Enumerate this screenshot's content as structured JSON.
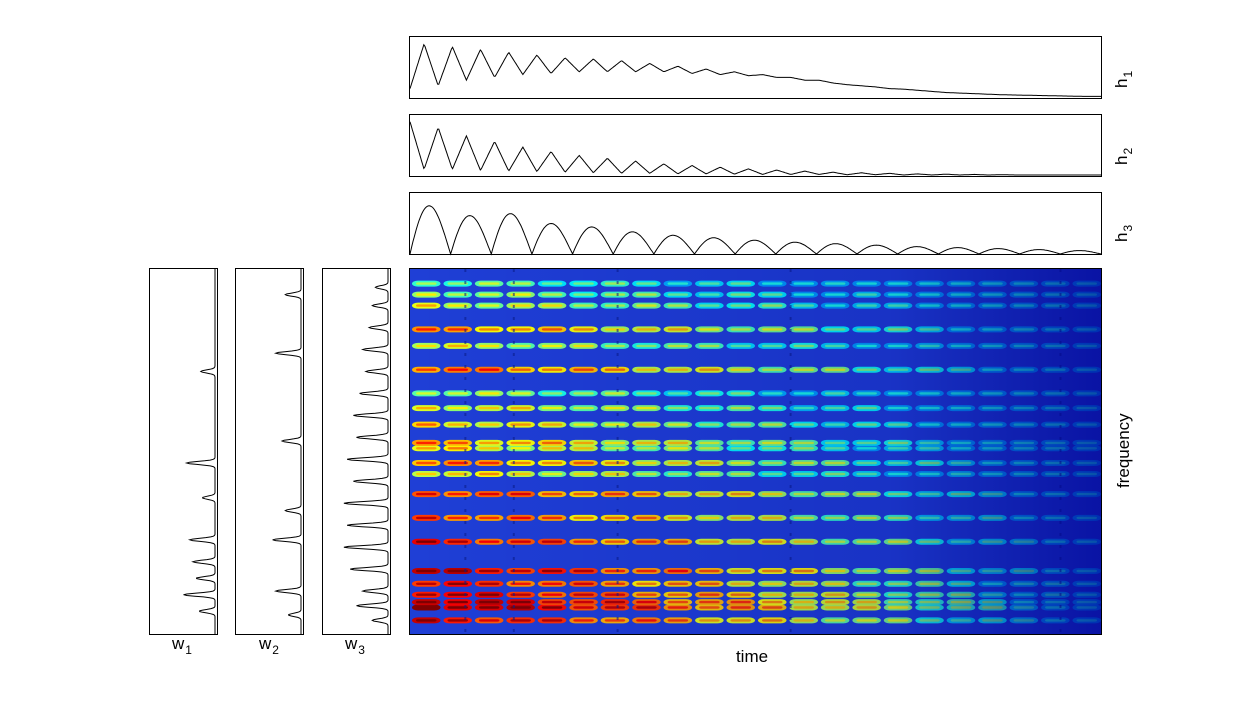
{
  "figure": {
    "colors": {
      "frame": "#000000",
      "trace": "#000000",
      "background": "#ffffff"
    },
    "xlabel": "time",
    "ylabel": "frequency"
  },
  "chart_data": [
    {
      "type": "line",
      "id": "h1",
      "label": "h",
      "subscript": "1",
      "axes_visible": false,
      "description_of_shape": "oscillating decay",
      "values": [
        0.15,
        0.95,
        0.2,
        0.9,
        0.3,
        0.85,
        0.35,
        0.8,
        0.4,
        0.75,
        0.42,
        0.7,
        0.45,
        0.68,
        0.45,
        0.65,
        0.45,
        0.6,
        0.45,
        0.55,
        0.42,
        0.5,
        0.4,
        0.45,
        0.38,
        0.4,
        0.35,
        0.35,
        0.3,
        0.3,
        0.25,
        0.22,
        0.2,
        0.18,
        0.15,
        0.14,
        0.12,
        0.1,
        0.08,
        0.07,
        0.06,
        0.05,
        0.04,
        0.035,
        0.03,
        0.025,
        0.02,
        0.015,
        0.01,
        0.01
      ]
    },
    {
      "type": "line",
      "id": "h2",
      "label": "h",
      "subscript": "2",
      "axes_visible": false,
      "values": [
        0.95,
        0.1,
        0.85,
        0.1,
        0.7,
        0.08,
        0.6,
        0.07,
        0.5,
        0.06,
        0.42,
        0.05,
        0.35,
        0.04,
        0.3,
        0.03,
        0.25,
        0.03,
        0.2,
        0.02,
        0.17,
        0.02,
        0.14,
        0.015,
        0.11,
        0.01,
        0.09,
        0.01,
        0.07,
        0.01,
        0.05,
        0.005,
        0.04,
        0.005,
        0.03,
        0.0,
        0.02,
        0.0,
        0.015,
        0.0,
        0.01,
        0.0,
        0.005,
        0.0,
        0.0,
        0.0,
        0.0,
        0.0,
        0.0,
        0.0
      ]
    },
    {
      "type": "line",
      "id": "h3",
      "label": "h",
      "subscript": "3",
      "axes_visible": false,
      "arch_peaks": [
        0.98,
        0.78,
        0.82,
        0.62,
        0.55,
        0.45,
        0.38,
        0.33,
        0.28,
        0.24,
        0.21,
        0.18,
        0.15,
        0.13,
        0.11,
        0.09,
        0.07
      ]
    },
    {
      "type": "line",
      "id": "w1",
      "label": "w",
      "subscript": "1",
      "orientation": "vertical",
      "axes_visible": false,
      "spikes": [
        {
          "pos": 0.065,
          "amp": 0.05
        },
        {
          "pos": 0.11,
          "amp": 0.1
        },
        {
          "pos": 0.155,
          "amp": 0.06
        },
        {
          "pos": 0.2,
          "amp": 0.07
        },
        {
          "pos": 0.26,
          "amp": 0.08
        },
        {
          "pos": 0.375,
          "amp": 0.04
        },
        {
          "pos": 0.47,
          "amp": 0.09
        },
        {
          "pos": 0.72,
          "amp": 0.045
        }
      ]
    },
    {
      "type": "line",
      "id": "w2",
      "label": "w",
      "subscript": "2",
      "orientation": "vertical",
      "axes_visible": false,
      "spikes": [
        {
          "pos": 0.055,
          "amp": 0.04
        },
        {
          "pos": 0.12,
          "amp": 0.08
        },
        {
          "pos": 0.26,
          "amp": 0.09
        },
        {
          "pos": 0.34,
          "amp": 0.05
        },
        {
          "pos": 0.53,
          "amp": 0.06
        },
        {
          "pos": 0.77,
          "amp": 0.08
        },
        {
          "pos": 0.93,
          "amp": 0.05
        }
      ]
    },
    {
      "type": "line",
      "id": "w3",
      "label": "w",
      "subscript": "3",
      "orientation": "vertical",
      "axes_visible": false,
      "spikes": [
        {
          "pos": 0.04,
          "amp": 0.05
        },
        {
          "pos": 0.08,
          "amp": 0.1
        },
        {
          "pos": 0.12,
          "amp": 0.08
        },
        {
          "pos": 0.18,
          "amp": 0.12
        },
        {
          "pos": 0.24,
          "amp": 0.14
        },
        {
          "pos": 0.3,
          "amp": 0.13
        },
        {
          "pos": 0.36,
          "amp": 0.14
        },
        {
          "pos": 0.42,
          "amp": 0.11
        },
        {
          "pos": 0.48,
          "amp": 0.13
        },
        {
          "pos": 0.54,
          "amp": 0.1
        },
        {
          "pos": 0.6,
          "amp": 0.11
        },
        {
          "pos": 0.66,
          "amp": 0.09
        },
        {
          "pos": 0.72,
          "amp": 0.07
        },
        {
          "pos": 0.78,
          "amp": 0.08
        },
        {
          "pos": 0.84,
          "amp": 0.06
        },
        {
          "pos": 0.9,
          "amp": 0.05
        },
        {
          "pos": 0.95,
          "amp": 0.04
        }
      ]
    },
    {
      "type": "heatmap",
      "id": "spectrogram",
      "xlabel": "time",
      "ylabel": "frequency",
      "colormap": "jet",
      "axes_visible": false,
      "note_boundaries": [
        0.08,
        0.15,
        0.3,
        0.55,
        0.94
      ],
      "bands": [
        {
          "pos": 0.04,
          "strength": 0.88
        },
        {
          "pos": 0.075,
          "strength": 0.97
        },
        {
          "pos": 0.09,
          "strength": 0.95
        },
        {
          "pos": 0.11,
          "strength": 0.9
        },
        {
          "pos": 0.14,
          "strength": 0.85
        },
        {
          "pos": 0.175,
          "strength": 0.92
        },
        {
          "pos": 0.255,
          "strength": 0.85
        },
        {
          "pos": 0.32,
          "strength": 0.78
        },
        {
          "pos": 0.385,
          "strength": 0.8
        },
        {
          "pos": 0.44,
          "strength": 0.6
        },
        {
          "pos": 0.47,
          "strength": 0.72
        },
        {
          "pos": 0.51,
          "strength": 0.6
        },
        {
          "pos": 0.525,
          "strength": 0.68
        },
        {
          "pos": 0.575,
          "strength": 0.62
        },
        {
          "pos": 0.62,
          "strength": 0.58
        },
        {
          "pos": 0.66,
          "strength": 0.5
        },
        {
          "pos": 0.725,
          "strength": 0.75
        },
        {
          "pos": 0.79,
          "strength": 0.55
        },
        {
          "pos": 0.835,
          "strength": 0.7
        },
        {
          "pos": 0.9,
          "strength": 0.55
        },
        {
          "pos": 0.93,
          "strength": 0.5
        },
        {
          "pos": 0.96,
          "strength": 0.45
        }
      ]
    }
  ]
}
